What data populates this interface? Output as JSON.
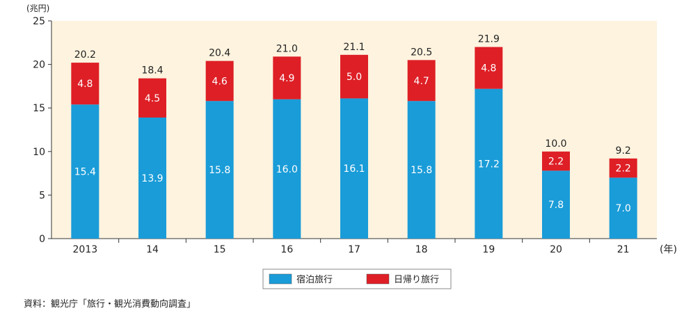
{
  "chart_data": {
    "type": "bar",
    "stacked": true,
    "categories": [
      "2013",
      "14",
      "15",
      "16",
      "17",
      "18",
      "19",
      "20",
      "21"
    ],
    "series": [
      {
        "name": "宿泊旅行",
        "values": [
          15.4,
          13.9,
          15.8,
          16.0,
          16.1,
          15.8,
          17.2,
          7.8,
          7.0
        ],
        "labels": [
          "15.4",
          "13.9",
          "15.8",
          "16.0",
          "16.1",
          "15.8",
          "17.2",
          "7.8",
          "7.0"
        ]
      },
      {
        "name": "日帰り旅行",
        "values": [
          4.8,
          4.5,
          4.6,
          4.9,
          5.0,
          4.7,
          4.8,
          2.2,
          2.2
        ],
        "labels": [
          "4.8",
          "4.5",
          "4.6",
          "4.9",
          "5.0",
          "4.7",
          "4.8",
          "2.2",
          "2.2"
        ]
      }
    ],
    "totals": [
      "20.2",
      "18.4",
      "20.4",
      "21.0",
      "21.1",
      "20.5",
      "21.9",
      "10.0",
      "9.2"
    ],
    "ylim": [
      0,
      25
    ],
    "yticks": [
      "0",
      "5",
      "10",
      "15",
      "20",
      "25"
    ],
    "ylabel": "(兆円)",
    "xlabel": "(年)",
    "legend_position": "bottom-center",
    "colors": {
      "宿泊旅行": "#1a9cd8",
      "日帰り旅行": "#de1f26",
      "plot_background": "#fdf3df"
    }
  },
  "source": "資料：観光庁「旅行・観光消費動向調査」"
}
